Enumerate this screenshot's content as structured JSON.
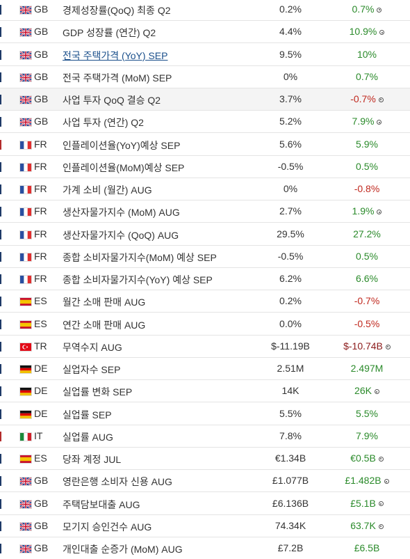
{
  "rows": [
    {
      "bar_color": "#1f3a68",
      "country": "GB",
      "event": "경제성장률(QoQ) 최종 Q2",
      "actual": "0.2%",
      "previous": "0.7%",
      "previous_color": "#2a8a2a",
      "revised": true
    },
    {
      "bar_color": "#1f3a68",
      "country": "GB",
      "event": "GDP 성장률 (연간) Q2",
      "actual": "4.4%",
      "previous": "10.9%",
      "previous_color": "#2a8a2a",
      "revised": true
    },
    {
      "bar_color": "#1f3a68",
      "country": "GB",
      "event": "전국 주택가격 (YoY) SEP",
      "link": true,
      "actual": "9.5%",
      "previous": "10%",
      "previous_color": "#2a8a2a",
      "revised": false
    },
    {
      "bar_color": "#1f3a68",
      "country": "GB",
      "event": "전국 주택가격 (MoM) SEP",
      "actual": "0%",
      "previous": "0.7%",
      "previous_color": "#2a8a2a",
      "revised": false
    },
    {
      "bar_color": "#1f3a68",
      "country": "GB",
      "event": "사업 투자 QoQ 결승 Q2",
      "highlight": true,
      "actual": "3.7%",
      "previous": "-0.7%",
      "previous_color": "#c0281e",
      "revised": true
    },
    {
      "bar_color": "#1f3a68",
      "country": "GB",
      "event": "사업 투자 (연간) Q2",
      "actual": "5.2%",
      "previous": "7.9%",
      "previous_color": "#2a8a2a",
      "revised": true
    },
    {
      "bar_color": "#b32b2b",
      "country": "FR",
      "event": "인플레이션율(YoY)예상 SEP",
      "actual": "5.6%",
      "previous": "5.9%",
      "previous_color": "#2a8a2a",
      "revised": false
    },
    {
      "bar_color": "#1f3a68",
      "country": "FR",
      "event": "인플레이션율(MoM)예상 SEP",
      "actual": "-0.5%",
      "previous": "0.5%",
      "previous_color": "#2a8a2a",
      "revised": false
    },
    {
      "bar_color": "#1f3a68",
      "country": "FR",
      "event": "가계 소비 (월간) AUG",
      "actual": "0%",
      "previous": "-0.8%",
      "previous_color": "#c0281e",
      "revised": false
    },
    {
      "bar_color": "#1f3a68",
      "country": "FR",
      "event": "생산자물가지수 (MoM) AUG",
      "actual": "2.7%",
      "previous": "1.9%",
      "previous_color": "#2a8a2a",
      "revised": true
    },
    {
      "bar_color": "#1f3a68",
      "country": "FR",
      "event": "생산자물가지수 (QoQ) AUG",
      "actual": "29.5%",
      "previous": "27.2%",
      "previous_color": "#2a8a2a",
      "revised": false
    },
    {
      "bar_color": "#1f3a68",
      "country": "FR",
      "event": "종합 소비자물가지수(MoM) 예상 SEP",
      "actual": "-0.5%",
      "previous": "0.5%",
      "previous_color": "#2a8a2a",
      "revised": false
    },
    {
      "bar_color": "#1f3a68",
      "country": "FR",
      "event": "종합 소비자물가지수(YoY) 예상 SEP",
      "actual": "6.2%",
      "previous": "6.6%",
      "previous_color": "#2a8a2a",
      "revised": false
    },
    {
      "bar_color": "#1f3a68",
      "country": "ES",
      "event": "월간 소매 판매 AUG",
      "actual": "0.2%",
      "previous": "-0.7%",
      "previous_color": "#c0281e",
      "revised": false
    },
    {
      "bar_color": "#1f3a68",
      "country": "ES",
      "event": "연간 소매 판매 AUG",
      "actual": "0.0%",
      "previous": "-0.5%",
      "previous_color": "#c0281e",
      "revised": false
    },
    {
      "bar_color": "#1f3a68",
      "country": "TR",
      "event": "무역수지 AUG",
      "actual": "$-11.19B",
      "previous": "$-10.74B",
      "previous_color": "#8b1a1a",
      "revised": true
    },
    {
      "bar_color": "#1f3a68",
      "country": "DE",
      "event": "실업자수 SEP",
      "actual": "2.51M",
      "previous": "2.497M",
      "previous_color": "#2a8a2a",
      "revised": false
    },
    {
      "bar_color": "#1f3a68",
      "country": "DE",
      "event": "실업률 변화 SEP",
      "actual": "14K",
      "previous": "26K",
      "previous_color": "#2a8a2a",
      "revised": true
    },
    {
      "bar_color": "#1f3a68",
      "country": "DE",
      "event": "실업률 SEP",
      "actual": "5.5%",
      "previous": "5.5%",
      "previous_color": "#2a8a2a",
      "revised": false
    },
    {
      "bar_color": "#b32b2b",
      "country": "IT",
      "event": "실업률 AUG",
      "actual": "7.8%",
      "previous": "7.9%",
      "previous_color": "#2a8a2a",
      "revised": false
    },
    {
      "bar_color": "#1f3a68",
      "country": "ES",
      "event": "당좌 계정 JUL",
      "actual": "€1.34B",
      "previous": "€0.5B",
      "previous_color": "#2a8a2a",
      "revised": true
    },
    {
      "bar_color": "#1f3a68",
      "country": "GB",
      "event": "영란은행 소비자 신용 AUG",
      "actual": "£1.077B",
      "previous": "£1.482B",
      "previous_color": "#2a8a2a",
      "revised": true
    },
    {
      "bar_color": "#1f3a68",
      "country": "GB",
      "event": "주택담보대출 AUG",
      "actual": "£6.136B",
      "previous": "£5.1B",
      "previous_color": "#2a8a2a",
      "revised": true
    },
    {
      "bar_color": "#1f3a68",
      "country": "GB",
      "event": "모기지 승인건수 AUG",
      "actual": "74.34K",
      "previous": "63.7K",
      "previous_color": "#2a8a2a",
      "revised": true
    },
    {
      "bar_color": "#1f3a68",
      "country": "GB",
      "event": "개인대출 순증가 (MoM) AUG",
      "actual": "£7.2B",
      "previous": "£6.5B",
      "previous_color": "#2a8a2a",
      "revised": false
    }
  ]
}
